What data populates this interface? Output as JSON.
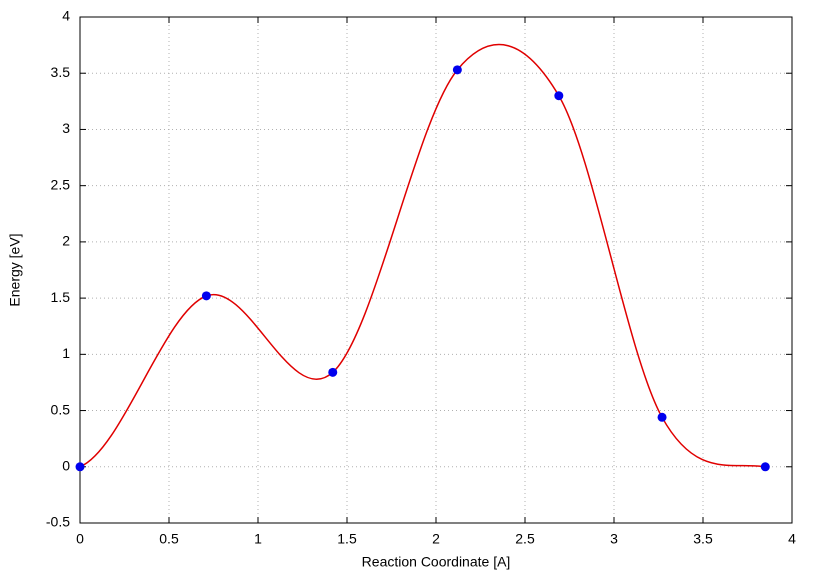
{
  "chart_data": {
    "type": "line",
    "xlabel": "Reaction Coordinate [A]",
    "ylabel": "Energy [eV]",
    "x": [
      0,
      0.71,
      1.42,
      2.12,
      2.69,
      3.27,
      3.85
    ],
    "values": [
      0,
      1.52,
      0.84,
      3.53,
      3.3,
      0.44,
      0
    ],
    "line_color": "#e00000",
    "marker_color": "#0000ee",
    "xlim": [
      0,
      4
    ],
    "xticks": [
      0,
      0.5,
      1,
      1.5,
      2,
      2.5,
      3,
      3.5,
      4
    ],
    "ylim": [
      -0.5,
      4
    ],
    "yticks": [
      -0.5,
      0,
      0.5,
      1,
      1.5,
      2,
      2.5,
      3,
      3.5,
      4
    ],
    "grid": true
  }
}
